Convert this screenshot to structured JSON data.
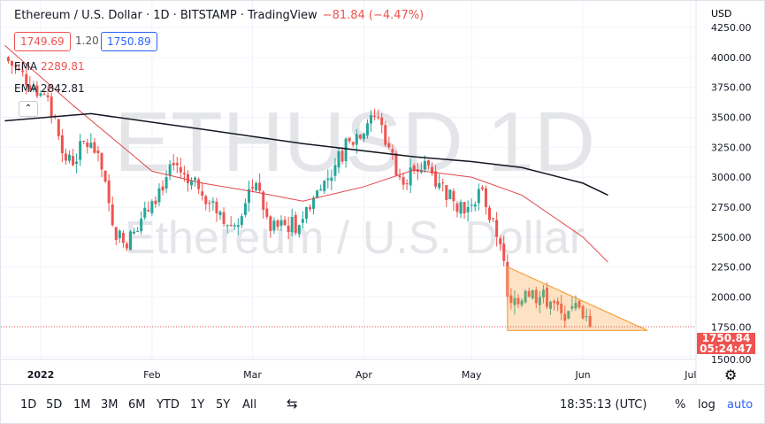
{
  "header": {
    "title": "Ethereum / U.S. Dollar · 1D · BITSTAMP · TradingView",
    "change": "−81.84 (−4.47%)",
    "bid": "1749.69",
    "spread": "1.20",
    "ask": "1750.89",
    "ema1_label": "EMA",
    "ema1_value": "2289.81",
    "ema2_label": "EMA",
    "ema2_value": "2842.81",
    "currency": "USD"
  },
  "watermark": {
    "symbol": "ETHUSD, 1D",
    "description": "Ethereum / U.S. Dollar"
  },
  "price_label": {
    "price": "1750.84",
    "countdown": "05:24:47"
  },
  "toolbar": {
    "ranges": [
      "1D",
      "5D",
      "1M",
      "3M",
      "6M",
      "YTD",
      "1Y",
      "5Y",
      "All"
    ],
    "time": "18:35:13 (UTC)",
    "percent": "%",
    "log": "log",
    "auto": "auto"
  },
  "colors": {
    "up": "#26a69a",
    "down": "#ef5350",
    "ema_fast": "#e0474c",
    "ema_slow": "#131722",
    "triangle": "#f7a23c",
    "accent": "#2962ff"
  },
  "chart_data": {
    "type": "candlestick",
    "ylim": [
      1500,
      4250
    ],
    "yticks": [
      "4250.00",
      "4000.00",
      "3750.00",
      "3500.00",
      "3250.00",
      "3000.00",
      "2750.00",
      "2500.00",
      "2250.00",
      "2000.00",
      "1750.00",
      "1500.00"
    ],
    "xticks": [
      {
        "label": "2022",
        "date": "2022-01-01"
      },
      {
        "label": "Feb",
        "date": "2022-02-01"
      },
      {
        "label": "Mar",
        "date": "2022-03-01"
      },
      {
        "label": "Apr",
        "date": "2022-04-01"
      },
      {
        "label": "May",
        "date": "2022-05-01"
      },
      {
        "label": "Jun",
        "date": "2022-06-01"
      },
      {
        "label": "Jul",
        "date": "2022-07-01"
      }
    ],
    "closes": [
      [
        "2021-12-22",
        4000
      ],
      [
        "2022-01-01",
        3700
      ],
      [
        "2022-01-05",
        3500
      ],
      [
        "2022-01-07",
        3200
      ],
      [
        "2022-01-10",
        3100
      ],
      [
        "2022-01-13",
        3300
      ],
      [
        "2022-01-17",
        3200
      ],
      [
        "2022-01-21",
        2600
      ],
      [
        "2022-01-24",
        2450
      ],
      [
        "2022-01-28",
        2550
      ],
      [
        "2022-02-01",
        2800
      ],
      [
        "2022-02-05",
        3000
      ],
      [
        "2022-02-08",
        3100
      ],
      [
        "2022-02-11",
        2950
      ],
      [
        "2022-02-14",
        2900
      ],
      [
        "2022-02-18",
        2800
      ],
      [
        "2022-02-22",
        2600
      ],
      [
        "2022-02-24",
        2600
      ],
      [
        "2022-02-28",
        2900
      ],
      [
        "2022-03-02",
        2950
      ],
      [
        "2022-03-06",
        2550
      ],
      [
        "2022-03-10",
        2600
      ],
      [
        "2022-03-14",
        2600
      ],
      [
        "2022-03-16",
        2750
      ],
      [
        "2022-03-20",
        2900
      ],
      [
        "2022-03-24",
        3100
      ],
      [
        "2022-03-28",
        3300
      ],
      [
        "2022-04-02",
        3450
      ],
      [
        "2022-04-05",
        3500
      ],
      [
        "2022-04-08",
        3250
      ],
      [
        "2022-04-11",
        3000
      ],
      [
        "2022-04-15",
        3050
      ],
      [
        "2022-04-19",
        3100
      ],
      [
        "2022-04-22",
        2950
      ],
      [
        "2022-04-26",
        2800
      ],
      [
        "2022-04-30",
        2750
      ],
      [
        "2022-05-03",
        2900
      ],
      [
        "2022-05-05",
        2750
      ],
      [
        "2022-05-08",
        2500
      ],
      [
        "2022-05-10",
        2300
      ],
      [
        "2022-05-11",
        2000
      ],
      [
        "2022-05-12",
        1950
      ],
      [
        "2022-05-16",
        2050
      ],
      [
        "2022-05-20",
        2000
      ],
      [
        "2022-05-24",
        1950
      ],
      [
        "2022-05-27",
        1800
      ],
      [
        "2022-05-30",
        1950
      ],
      [
        "2022-06-01",
        1820
      ],
      [
        "2022-06-03",
        1750
      ]
    ],
    "ema_fast": [
      [
        "2021-12-22",
        4100
      ],
      [
        "2022-01-10",
        3600
      ],
      [
        "2022-02-01",
        3050
      ],
      [
        "2022-02-15",
        2950
      ],
      [
        "2022-03-01",
        2880
      ],
      [
        "2022-03-15",
        2800
      ],
      [
        "2022-04-01",
        2920
      ],
      [
        "2022-04-15",
        3060
      ],
      [
        "2022-05-01",
        3000
      ],
      [
        "2022-05-15",
        2850
      ],
      [
        "2022-06-01",
        2500
      ],
      [
        "2022-06-08",
        2290
      ]
    ],
    "ema_slow": [
      [
        "2021-12-22",
        3470
      ],
      [
        "2022-01-15",
        3530
      ],
      [
        "2022-02-15",
        3400
      ],
      [
        "2022-03-15",
        3280
      ],
      [
        "2022-04-15",
        3170
      ],
      [
        "2022-05-01",
        3130
      ],
      [
        "2022-05-15",
        3080
      ],
      [
        "2022-06-01",
        2950
      ],
      [
        "2022-06-08",
        2850
      ]
    ],
    "triangle": [
      [
        "2022-05-11",
        2250
      ],
      [
        "2022-06-19",
        1720
      ],
      [
        "2022-05-11",
        1720
      ]
    ],
    "last_price": 1750.84
  }
}
